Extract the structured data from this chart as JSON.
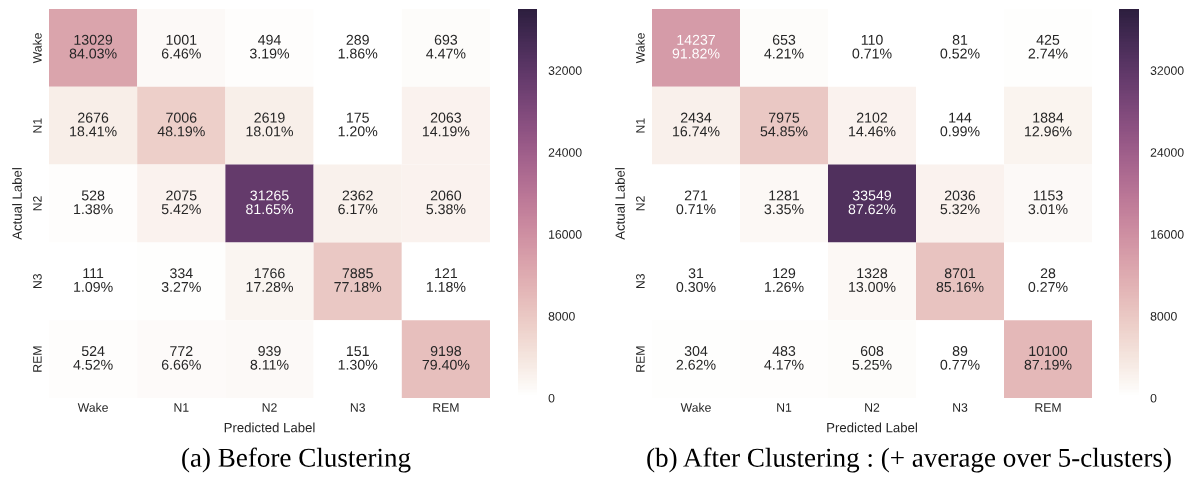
{
  "chart_data": [
    {
      "type": "heatmap",
      "title": "(a) Before Clustering",
      "xlabel": "Predicted Label",
      "ylabel": "Actual Label",
      "categories": [
        "Wake",
        "N1",
        "N2",
        "N3",
        "REM"
      ],
      "y_categories": [
        "Wake",
        "N1",
        "N2",
        "N3",
        "REM"
      ],
      "cells": [
        [
          13029,
          1001,
          494,
          289,
          693
        ],
        [
          2676,
          7006,
          2619,
          175,
          2063
        ],
        [
          528,
          2075,
          31265,
          2362,
          2060
        ],
        [
          111,
          334,
          1766,
          7885,
          121
        ],
        [
          524,
          772,
          939,
          151,
          9198
        ]
      ],
      "cell_labels": [
        [
          "13029\n84.03%",
          "1001\n6.46%",
          "494\n3.19%",
          "289\n1.86%",
          "693\n4.47%"
        ],
        [
          "2676\n18.41%",
          "7006\n48.19%",
          "2619\n18.01%",
          "175\n1.20%",
          "2063\n14.19%"
        ],
        [
          "528\n1.38%",
          "2075\n5.42%",
          "31265\n81.65%",
          "2362\n6.17%",
          "2060\n5.38%"
        ],
        [
          "111\n1.09%",
          "334\n3.27%",
          "1766\n17.28%",
          "7885\n77.18%",
          "121\n1.18%"
        ],
        [
          "524\n4.52%",
          "772\n6.66%",
          "939\n8.11%",
          "151\n1.30%",
          "9198\n79.40%"
        ]
      ],
      "clim": [
        0,
        38000
      ],
      "cticks": [
        0,
        8000,
        16000,
        24000,
        32000
      ]
    },
    {
      "type": "heatmap",
      "title": "(b) After Clustering : (+ average over 5-clusters)",
      "xlabel": "Predicted Label",
      "ylabel": "Actual Label",
      "categories": [
        "Wake",
        "N1",
        "N2",
        "N3",
        "REM"
      ],
      "y_categories": [
        "Wake",
        "N1",
        "N2",
        "N3",
        "REM"
      ],
      "cells": [
        [
          14237,
          653,
          110,
          81,
          425
        ],
        [
          2434,
          7975,
          2102,
          144,
          1884
        ],
        [
          271,
          1281,
          33549,
          2036,
          1153
        ],
        [
          31,
          129,
          1328,
          8701,
          28
        ],
        [
          304,
          483,
          608,
          89,
          10100
        ]
      ],
      "cell_labels": [
        [
          "14237\n91.82%",
          "653\n4.21%",
          "110\n0.71%",
          "81\n0.52%",
          "425\n2.74%"
        ],
        [
          "2434\n16.74%",
          "7975\n54.85%",
          "2102\n14.46%",
          "144\n0.99%",
          "1884\n12.96%"
        ],
        [
          "271\n0.71%",
          "1281\n3.35%",
          "33549\n87.62%",
          "2036\n5.32%",
          "1153\n3.01%"
        ],
        [
          "31\n0.30%",
          "129\n1.26%",
          "1328\n13.00%",
          "8701\n85.16%",
          "28\n0.27%"
        ],
        [
          "304\n2.62%",
          "483\n4.17%",
          "608\n5.25%",
          "89\n0.77%",
          "10100\n87.19%"
        ]
      ],
      "clim": [
        0,
        38000
      ],
      "cticks": [
        0,
        8000,
        16000,
        24000,
        32000
      ]
    }
  ]
}
